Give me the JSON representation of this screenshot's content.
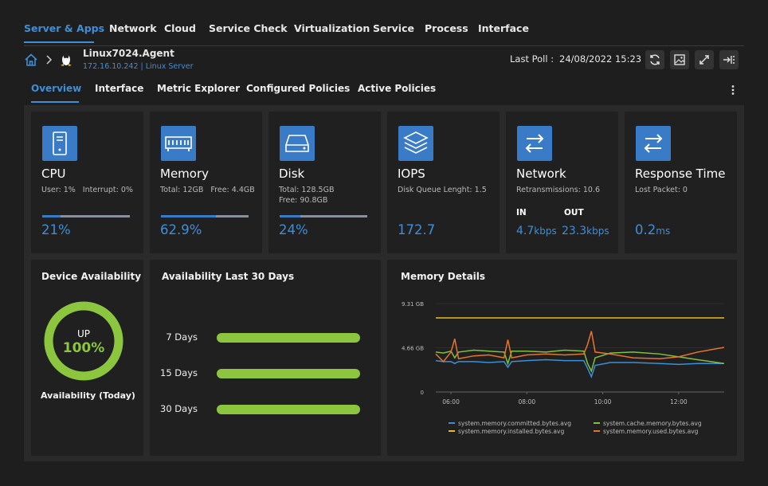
{
  "top_tabs": [
    "Server & Apps",
    "Network",
    "Cloud",
    "Service Check",
    "Virtualization",
    "Service",
    "Process",
    "Interface"
  ],
  "breadcrumb": {
    "device_name": "Linux7024.Agent",
    "device_info": "172.16.10.242 | Linux Server",
    "last_poll_label": "Last Poll :",
    "last_poll": "24/08/2022 15:23"
  },
  "sub_tabs": [
    "Overview",
    "Interface",
    "Metric Explorer",
    "Configured Policies",
    "Active Policies"
  ],
  "metric_cards": [
    {
      "title": "CPU",
      "details": [
        "User: 1%",
        "Interrupt: 0%"
      ],
      "value": 21,
      "value_label": "21%"
    },
    {
      "title": "Memory",
      "details": [
        "Total: 12GB",
        "Free: 4.4GB"
      ],
      "value": 62.9,
      "value_label": "62.9%"
    },
    {
      "title": "Disk",
      "details": [
        "Total: 128.5GB",
        "Free: 90.8GB"
      ],
      "value": 24,
      "value_label": "24%"
    },
    {
      "title": "IOPS",
      "details": [
        "Disk Queue Lenght: 1.5"
      ],
      "value_label": "172.7"
    },
    {
      "title": "Network",
      "details": [
        "Retransmissions: 10.6"
      ],
      "in_label": "IN",
      "in_value": "4.7",
      "in_unit": "kbps",
      "out_label": "OUT",
      "out_value": "23.3",
      "out_unit": "kbps"
    },
    {
      "title": "Response Time",
      "details": [
        "Lost Packet: 0"
      ],
      "value_label": "0.2",
      "unit": "ms"
    }
  ],
  "device_availability": {
    "title": "Device Availability",
    "status": "UP",
    "percent": 100,
    "percent_label": "100%",
    "caption": "Availability (Today)",
    "color": "#8cc63f"
  },
  "availability_30_days": {
    "title": "Availability Last 30 Days",
    "xlim": [
      0,
      100
    ],
    "color": "#8cc63f",
    "rows": [
      {
        "label": "7 Days",
        "value": 100
      },
      {
        "label": "15 Days",
        "value": 100
      },
      {
        "label": "30 Days",
        "value": 100
      }
    ]
  },
  "memory_details": {
    "type": "line",
    "title": "Memory Details",
    "x": [
      5.6,
      5.8,
      6.0,
      6.1,
      6.2,
      6.6,
      7.0,
      7.4,
      7.5,
      7.6,
      8.0,
      8.5,
      9.0,
      9.5,
      9.6,
      9.7,
      9.8,
      10.2,
      10.8,
      11.5,
      12.0,
      12.5,
      13.2
    ],
    "xlim": [
      5.6,
      13.2
    ],
    "xticks": [
      {
        "value": 6,
        "label": "06:00"
      },
      {
        "value": 8,
        "label": "08:00"
      },
      {
        "value": 10,
        "label": "10:00"
      },
      {
        "value": 12,
        "label": "12:00"
      }
    ],
    "ylim": [
      0,
      9.31
    ],
    "yticks": [
      0,
      {
        "value": 4.66,
        "label": "4.66 GB"
      },
      {
        "value": 9.31,
        "label": "9.31 GB"
      }
    ],
    "series": [
      {
        "name": "system.memory.committed.bytes.avg",
        "color": "#3b8fd6",
        "values": [
          3.3,
          3.2,
          3.2,
          3.0,
          3.2,
          3.2,
          3.1,
          3.2,
          2.6,
          3.2,
          3.3,
          3.4,
          3.3,
          3.3,
          2.5,
          1.6,
          2.8,
          3.1,
          3.1,
          3.0,
          2.9,
          3.0,
          3.0
        ]
      },
      {
        "name": "system.cache.memory.bytes.avg",
        "color": "#7dc142",
        "values": [
          4.2,
          4.1,
          4.3,
          3.6,
          4.2,
          4.4,
          4.3,
          4.2,
          3.0,
          4.3,
          4.3,
          4.2,
          4.4,
          4.3,
          3.0,
          2.2,
          3.6,
          4.1,
          4.2,
          4.0,
          3.7,
          3.4,
          3.0
        ]
      },
      {
        "name": "system.memory.installed.bytes.avg",
        "color": "#e8b923",
        "values": [
          7.8,
          7.8,
          7.8,
          7.8,
          7.8,
          7.8,
          7.8,
          7.8,
          7.8,
          7.8,
          7.8,
          7.8,
          7.8,
          7.8,
          7.8,
          7.8,
          7.8,
          7.8,
          7.8,
          7.8,
          7.8,
          7.8,
          7.8
        ]
      },
      {
        "name": "system.memory.used.bytes.avg",
        "color": "#e8742c",
        "values": [
          4.0,
          3.2,
          4.2,
          5.6,
          3.5,
          3.8,
          3.9,
          3.6,
          5.5,
          3.6,
          3.9,
          4.0,
          3.9,
          4.0,
          5.0,
          6.4,
          4.2,
          4.0,
          3.6,
          3.5,
          3.7,
          4.2,
          4.7
        ]
      }
    ]
  }
}
